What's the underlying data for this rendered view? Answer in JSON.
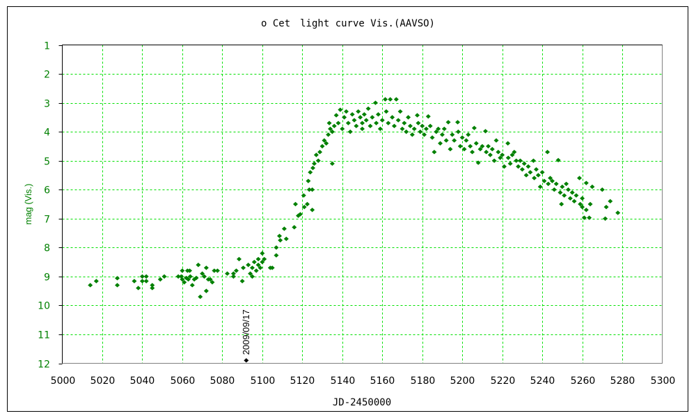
{
  "chart_data": {
    "type": "scatter",
    "title": "ο Cet　light curve Vis.(AAVSO)",
    "xlabel": "JD-2450000",
    "ylabel": "mag (Vis.)",
    "xlim": [
      5000,
      5300
    ],
    "ylim": [
      1,
      12
    ],
    "y_inverted": true,
    "x_ticks": [
      5000,
      5020,
      5040,
      5060,
      5080,
      5100,
      5120,
      5140,
      5160,
      5180,
      5200,
      5220,
      5240,
      5260,
      5280,
      5300
    ],
    "y_ticks": [
      1,
      2,
      3,
      4,
      5,
      6,
      7,
      8,
      9,
      10,
      11,
      12
    ],
    "grid": true,
    "colors": {
      "points": "#008000",
      "grid": "#00e000",
      "ytick_labels": "#008000",
      "ylabel": "#008000",
      "highlight": "#000000"
    },
    "highlight": {
      "x": 5092,
      "y": 11.9,
      "label": "2009/09/17"
    },
    "points": [
      [
        5014,
        9.3
      ],
      [
        5017,
        9.16
      ],
      [
        5027.5,
        9.06
      ],
      [
        5027.5,
        9.3
      ],
      [
        5036,
        9.16
      ],
      [
        5038,
        9.4
      ],
      [
        5040,
        9.0
      ],
      [
        5040,
        9.16
      ],
      [
        5042,
        9.0
      ],
      [
        5042,
        9.16
      ],
      [
        5045,
        9.3
      ],
      [
        5045,
        9.4
      ],
      [
        5049,
        9.1
      ],
      [
        5051,
        9.0
      ],
      [
        5058,
        9.0
      ],
      [
        5059.5,
        9.0
      ],
      [
        5060,
        8.8
      ],
      [
        5060,
        9.1
      ],
      [
        5061,
        9.2
      ],
      [
        5062,
        9.05
      ],
      [
        5062.6,
        8.8
      ],
      [
        5063.7,
        8.8
      ],
      [
        5063,
        9.1
      ],
      [
        5064,
        9.0
      ],
      [
        5065,
        9.3
      ],
      [
        5066,
        9.1
      ],
      [
        5067,
        9.05
      ],
      [
        5068,
        8.6
      ],
      [
        5069,
        9.7
      ],
      [
        5070,
        8.9
      ],
      [
        5071,
        9.0
      ],
      [
        5072,
        8.7
      ],
      [
        5072,
        9.5
      ],
      [
        5073,
        9.1
      ],
      [
        5074,
        9.1
      ],
      [
        5075,
        9.2
      ],
      [
        5076,
        8.8
      ],
      [
        5077.6,
        8.8
      ],
      [
        5082.5,
        8.9
      ],
      [
        5085.6,
        8.9
      ],
      [
        5085.6,
        9.0
      ],
      [
        5087,
        8.8
      ],
      [
        5088.4,
        8.4
      ],
      [
        5090,
        9.16
      ],
      [
        5090.5,
        8.7
      ],
      [
        5093,
        8.6
      ],
      [
        5094,
        8.9
      ],
      [
        5095,
        8.7
      ],
      [
        5095,
        9.0
      ],
      [
        5096,
        8.5
      ],
      [
        5097,
        8.8
      ],
      [
        5098,
        8.6
      ],
      [
        5098,
        8.4
      ],
      [
        5099,
        8.7
      ],
      [
        5100,
        8.2
      ],
      [
        5100,
        8.5
      ],
      [
        5101,
        8.4
      ],
      [
        5104,
        8.7
      ],
      [
        5105,
        8.7
      ],
      [
        5107,
        8.0
      ],
      [
        5107,
        8.27
      ],
      [
        5108.6,
        7.6
      ],
      [
        5109,
        7.75
      ],
      [
        5111,
        7.35
      ],
      [
        5112,
        7.7
      ],
      [
        5116,
        7.3
      ],
      [
        5116.6,
        6.5
      ],
      [
        5118,
        6.9
      ],
      [
        5119,
        6.85
      ],
      [
        5120.7,
        6.2
      ],
      [
        5121,
        6.6
      ],
      [
        5122.5,
        6.5
      ],
      [
        5123,
        5.7
      ],
      [
        5123.5,
        6.0
      ],
      [
        5124,
        5.4
      ],
      [
        5125,
        6.7
      ],
      [
        5125.3,
        5.25
      ],
      [
        5125,
        6.0
      ],
      [
        5126,
        5.1
      ],
      [
        5127,
        4.8
      ],
      [
        5128,
        5.0
      ],
      [
        5128.8,
        4.7
      ],
      [
        5130,
        4.5
      ],
      [
        5131,
        4.3
      ],
      [
        5132,
        4.4
      ],
      [
        5133,
        4.1
      ],
      [
        5133.5,
        3.7
      ],
      [
        5134,
        3.9
      ],
      [
        5135,
        5.1
      ],
      [
        5135,
        4.0
      ],
      [
        5136,
        3.8
      ],
      [
        5137,
        3.43
      ],
      [
        5138,
        3.7
      ],
      [
        5139,
        3.24
      ],
      [
        5140,
        3.9
      ],
      [
        5141,
        3.5
      ],
      [
        5142,
        3.3
      ],
      [
        5143,
        3.7
      ],
      [
        5144,
        4.0
      ],
      [
        5145,
        3.4
      ],
      [
        5146,
        3.6
      ],
      [
        5147,
        3.8
      ],
      [
        5148,
        3.3
      ],
      [
        5149,
        3.5
      ],
      [
        5150,
        3.7
      ],
      [
        5150,
        3.9
      ],
      [
        5151,
        3.4
      ],
      [
        5152,
        3.6
      ],
      [
        5153,
        3.2
      ],
      [
        5154,
        3.8
      ],
      [
        5155,
        3.5
      ],
      [
        5156.6,
        3.0
      ],
      [
        5157,
        3.7
      ],
      [
        5158,
        3.4
      ],
      [
        5159,
        3.9
      ],
      [
        5160,
        3.6
      ],
      [
        5161.5,
        2.88
      ],
      [
        5162,
        3.3
      ],
      [
        5163,
        3.7
      ],
      [
        5164,
        2.88
      ],
      [
        5165,
        3.5
      ],
      [
        5166,
        3.8
      ],
      [
        5167,
        2.88
      ],
      [
        5168,
        3.6
      ],
      [
        5169,
        3.3
      ],
      [
        5170,
        3.9
      ],
      [
        5171,
        3.7
      ],
      [
        5172,
        4.0
      ],
      [
        5173,
        3.5
      ],
      [
        5174,
        3.8
      ],
      [
        5175,
        4.1
      ],
      [
        5176,
        3.9
      ],
      [
        5177.5,
        3.43
      ],
      [
        5178,
        3.7
      ],
      [
        5179,
        4.0
      ],
      [
        5180,
        3.8
      ],
      [
        5181,
        4.1
      ],
      [
        5182,
        3.9
      ],
      [
        5183,
        3.47
      ],
      [
        5184,
        3.8
      ],
      [
        5185,
        4.2
      ],
      [
        5186,
        4.7
      ],
      [
        5187,
        4.0
      ],
      [
        5188,
        3.9
      ],
      [
        5189,
        4.4
      ],
      [
        5190,
        4.1
      ],
      [
        5191,
        3.9
      ],
      [
        5192,
        4.3
      ],
      [
        5193,
        3.67
      ],
      [
        5194,
        4.6
      ],
      [
        5195,
        4.1
      ],
      [
        5196,
        4.3
      ],
      [
        5197.7,
        3.67
      ],
      [
        5198,
        4.0
      ],
      [
        5199,
        4.5
      ],
      [
        5200,
        4.2
      ],
      [
        5201,
        4.6
      ],
      [
        5202,
        4.3
      ],
      [
        5203,
        4.1
      ],
      [
        5204,
        4.5
      ],
      [
        5205,
        4.7
      ],
      [
        5206,
        3.87
      ],
      [
        5207,
        4.4
      ],
      [
        5208,
        5.07
      ],
      [
        5209,
        4.6
      ],
      [
        5210,
        4.5
      ],
      [
        5211.6,
        3.98
      ],
      [
        5212,
        4.7
      ],
      [
        5213,
        4.5
      ],
      [
        5214,
        4.8
      ],
      [
        5215,
        4.6
      ],
      [
        5216,
        5.0
      ],
      [
        5217,
        4.3
      ],
      [
        5218,
        4.7
      ],
      [
        5219,
        4.9
      ],
      [
        5220,
        4.8
      ],
      [
        5221,
        5.2
      ],
      [
        5222.8,
        4.4
      ],
      [
        5223,
        4.9
      ],
      [
        5224,
        5.1
      ],
      [
        5225,
        4.8
      ],
      [
        5226,
        4.7
      ],
      [
        5227,
        5.0
      ],
      [
        5228,
        5.2
      ],
      [
        5229,
        5.0
      ],
      [
        5230,
        5.3
      ],
      [
        5231,
        5.1
      ],
      [
        5232,
        5.5
      ],
      [
        5233,
        5.2
      ],
      [
        5234,
        5.4
      ],
      [
        5235.6,
        5.0
      ],
      [
        5236,
        5.6
      ],
      [
        5237,
        5.3
      ],
      [
        5238,
        5.5
      ],
      [
        5239,
        5.9
      ],
      [
        5240,
        5.4
      ],
      [
        5241,
        5.7
      ],
      [
        5242.6,
        4.7
      ],
      [
        5243,
        5.8
      ],
      [
        5244,
        5.6
      ],
      [
        5245,
        5.7
      ],
      [
        5246,
        6.0
      ],
      [
        5247,
        5.8
      ],
      [
        5248,
        4.98
      ],
      [
        5249,
        6.1
      ],
      [
        5249.6,
        6.5
      ],
      [
        5250,
        5.9
      ],
      [
        5251,
        6.2
      ],
      [
        5252,
        5.8
      ],
      [
        5253,
        6.0
      ],
      [
        5254,
        6.3
      ],
      [
        5255,
        6.1
      ],
      [
        5256,
        6.4
      ],
      [
        5257,
        6.2
      ],
      [
        5258.6,
        5.6
      ],
      [
        5259,
        6.5
      ],
      [
        5260,
        6.6
      ],
      [
        5260,
        6.3
      ],
      [
        5261,
        6.97
      ],
      [
        5262,
        5.77
      ],
      [
        5262,
        6.7
      ],
      [
        5263.5,
        6.97
      ],
      [
        5264,
        6.5
      ],
      [
        5265,
        5.9
      ],
      [
        5270,
        6.0
      ],
      [
        5271.5,
        7.0
      ],
      [
        5272,
        6.6
      ],
      [
        5274,
        6.4
      ],
      [
        5277.8,
        6.8
      ]
    ]
  }
}
